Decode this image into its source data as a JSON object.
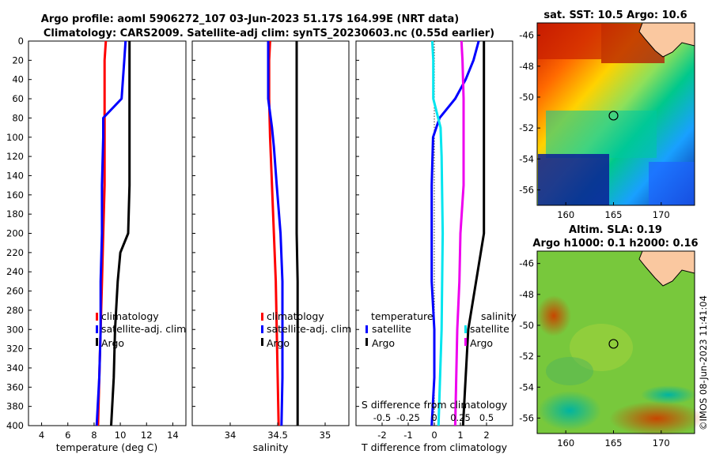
{
  "header": {
    "line1": "Argo profile: aoml 5906272_107 03-Jun-2023 51.17S 164.99E (NRT data)",
    "line2": "Climatology: CARS2009. Satellite-adj clim: synTS_20230603.nc (0.55d earlier)"
  },
  "depth_ticks": [
    "0",
    "20",
    "40",
    "60",
    "80",
    "100",
    "120",
    "140",
    "160",
    "180",
    "200",
    "220",
    "240",
    "260",
    "280",
    "300",
    "320",
    "340",
    "360",
    "380",
    "400"
  ],
  "colors": {
    "clim": "#ff0000",
    "sat": "#0000ff",
    "argo": "#000000",
    "cyan": "#00e5ee",
    "magenta": "#ee00ee"
  },
  "chart_data": [
    {
      "type": "line",
      "title": "",
      "xlabel": "temperature (deg C)",
      "ylabel": "",
      "xlim": [
        3,
        15
      ],
      "ylim": [
        0,
        400
      ],
      "x_ticks": [
        "4",
        "6",
        "8",
        "10",
        "12",
        "14"
      ],
      "series": [
        {
          "name": "climatology",
          "depth": [
            0,
            20,
            60,
            100,
            150,
            200,
            250,
            300,
            350,
            400
          ],
          "values": [
            8.9,
            8.8,
            8.8,
            8.8,
            8.8,
            8.7,
            8.6,
            8.5,
            8.4,
            8.3
          ]
        },
        {
          "name": "satellite-adj. clim",
          "depth": [
            0,
            20,
            40,
            60,
            80,
            100,
            150,
            200,
            250,
            300,
            350,
            400
          ],
          "values": [
            10.4,
            10.3,
            10.2,
            10.1,
            8.7,
            8.7,
            8.6,
            8.6,
            8.5,
            8.5,
            8.4,
            8.2
          ]
        },
        {
          "name": "Argo",
          "depth": [
            0,
            20,
            40,
            60,
            100,
            150,
            200,
            220,
            250,
            300,
            350,
            400
          ],
          "values": [
            10.7,
            10.7,
            10.7,
            10.7,
            10.7,
            10.7,
            10.6,
            10.0,
            9.8,
            9.6,
            9.5,
            9.3
          ]
        }
      ],
      "legend": [
        "climatology",
        "satellite-adj. clim",
        "Argo"
      ]
    },
    {
      "type": "line",
      "title": "",
      "xlabel": "salinity",
      "ylabel": "",
      "xlim": [
        33.6,
        35.25
      ],
      "ylim": [
        0,
        400
      ],
      "x_ticks": [
        "34",
        "34.5",
        "35"
      ],
      "series": [
        {
          "name": "climatology",
          "depth": [
            0,
            20,
            60,
            100,
            150,
            200,
            250,
            300,
            350,
            400
          ],
          "values": [
            34.42,
            34.41,
            34.41,
            34.42,
            34.44,
            34.46,
            34.48,
            34.49,
            34.5,
            34.51
          ]
        },
        {
          "name": "satellite-adj. clim",
          "depth": [
            0,
            20,
            60,
            90,
            110,
            150,
            200,
            250,
            300,
            350,
            400
          ],
          "values": [
            34.4,
            34.4,
            34.4,
            34.44,
            34.46,
            34.49,
            34.53,
            34.55,
            34.55,
            34.55,
            34.54
          ]
        },
        {
          "name": "Argo",
          "depth": [
            0,
            50,
            100,
            150,
            200,
            250,
            300,
            350,
            400
          ],
          "values": [
            34.7,
            34.7,
            34.7,
            34.7,
            34.7,
            34.71,
            34.71,
            34.71,
            34.71
          ]
        }
      ],
      "legend": [
        "climatology",
        "satellite-adj. clim",
        "Argo"
      ]
    },
    {
      "type": "line",
      "title": "",
      "xlabel": "T difference from climatology",
      "top_label": "S difference from climatology",
      "ylabel": "",
      "xlim": [
        -3,
        3
      ],
      "ylim": [
        0,
        400
      ],
      "x_ticks": [
        "-2",
        "-1",
        "0",
        "1",
        "2"
      ],
      "top_ticks": [
        "-0.5",
        "-0.25",
        "0",
        "0.25",
        "0.5"
      ],
      "series": [
        {
          "name": "temperature satellite",
          "depth": [
            0,
            20,
            40,
            60,
            80,
            100,
            150,
            200,
            250,
            300,
            350,
            400
          ],
          "values": [
            1.7,
            1.5,
            1.2,
            0.8,
            0.2,
            -0.05,
            -0.1,
            -0.1,
            -0.1,
            0,
            0,
            -0.1
          ]
        },
        {
          "name": "temperature Argo",
          "depth": [
            0,
            20,
            60,
            100,
            150,
            200,
            250,
            300,
            350,
            400
          ],
          "values": [
            1.9,
            1.9,
            1.9,
            1.9,
            1.9,
            1.9,
            1.6,
            1.3,
            1.2,
            1.1
          ]
        },
        {
          "name": "salinity satellite",
          "depth": [
            0,
            20,
            60,
            90,
            120,
            200,
            300,
            400
          ],
          "values": [
            -0.02,
            -0.01,
            -0.01,
            0.06,
            0.07,
            0.08,
            0.07,
            0.04
          ]
        },
        {
          "name": "salinity Argo",
          "depth": [
            0,
            20,
            60,
            100,
            150,
            200,
            250,
            300,
            400
          ],
          "values": [
            0.26,
            0.27,
            0.28,
            0.28,
            0.28,
            0.25,
            0.24,
            0.22,
            0.2
          ]
        }
      ],
      "legend_headers": [
        "temperature",
        "salinity"
      ],
      "legend": [
        "satellite",
        "Argo",
        "satellite",
        "Argo"
      ]
    },
    {
      "type": "heatmap",
      "title": "sat. SST: 10.5 Argo: 10.6",
      "x_ticks": [
        "160",
        "165",
        "170"
      ],
      "y_ticks": [
        "-46",
        "-48",
        "-50",
        "-52",
        "-54",
        "-56"
      ],
      "xlim": [
        157,
        173.5
      ],
      "ylim": [
        -57,
        -45.2
      ],
      "marker": {
        "lon": 165.0,
        "lat": -51.2
      }
    },
    {
      "type": "heatmap",
      "title_line1": "Altim. SLA: 0.19",
      "title_line2": "Argo h1000: 0.1 h2000: 0.16",
      "x_ticks": [
        "160",
        "165",
        "170"
      ],
      "y_ticks": [
        "-46",
        "-48",
        "-50",
        "-52",
        "-54",
        "-56"
      ],
      "xlim": [
        157,
        173.5
      ],
      "ylim": [
        -57,
        -45.2
      ],
      "marker": {
        "lon": 165.0,
        "lat": -51.2
      }
    }
  ],
  "credit": "©IMOS 08-Jun-2023 11:41:04"
}
